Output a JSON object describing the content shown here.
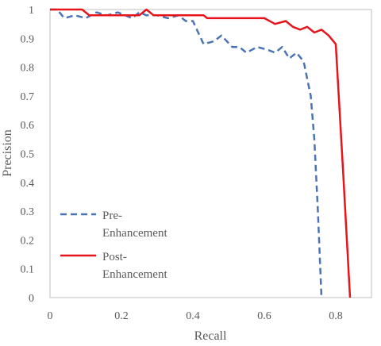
{
  "chart_data": {
    "type": "line",
    "title": "",
    "xlabel": "Recall",
    "ylabel": "Precision",
    "xlim": [
      0,
      0.9
    ],
    "ylim": [
      0,
      1
    ],
    "grid": false,
    "legend_position": "left",
    "x_ticks": [
      "0",
      "0.2",
      "0.4",
      "0.6",
      "0.8"
    ],
    "y_ticks": [
      "0",
      "0.1",
      "0.2",
      "0.3",
      "0.4",
      "0.5",
      "0.6",
      "0.7",
      "0.8",
      "0.9",
      "1"
    ],
    "series": [
      {
        "name": "Pre-Enhancement",
        "legend_lines": [
          "Pre-",
          "Enhancement"
        ],
        "color": "#4a74b5",
        "dash": "dashed",
        "points": [
          [
            0,
            1
          ],
          [
            0.02,
            1
          ],
          [
            0.04,
            0.97
          ],
          [
            0.07,
            0.98
          ],
          [
            0.1,
            0.97
          ],
          [
            0.13,
            0.99
          ],
          [
            0.16,
            0.98
          ],
          [
            0.19,
            0.99
          ],
          [
            0.23,
            0.97
          ],
          [
            0.25,
            0.99
          ],
          [
            0.27,
            0.98
          ],
          [
            0.3,
            0.98
          ],
          [
            0.33,
            0.97
          ],
          [
            0.36,
            0.98
          ],
          [
            0.38,
            0.96
          ],
          [
            0.4,
            0.96
          ],
          [
            0.43,
            0.88
          ],
          [
            0.46,
            0.89
          ],
          [
            0.48,
            0.91
          ],
          [
            0.51,
            0.87
          ],
          [
            0.53,
            0.87
          ],
          [
            0.55,
            0.85
          ],
          [
            0.58,
            0.87
          ],
          [
            0.61,
            0.86
          ],
          [
            0.63,
            0.85
          ],
          [
            0.65,
            0.87
          ],
          [
            0.67,
            0.83
          ],
          [
            0.69,
            0.85
          ],
          [
            0.71,
            0.82
          ],
          [
            0.73,
            0.7
          ],
          [
            0.74,
            0.55
          ],
          [
            0.75,
            0.3
          ],
          [
            0.76,
            0
          ]
        ]
      },
      {
        "name": "Post-Enhancement",
        "legend_lines": [
          "Post-",
          "Enhancement"
        ],
        "color": "#e8141c",
        "dash": "solid",
        "points": [
          [
            0,
            1
          ],
          [
            0.09,
            1
          ],
          [
            0.11,
            0.98
          ],
          [
            0.25,
            0.98
          ],
          [
            0.27,
            1
          ],
          [
            0.29,
            0.98
          ],
          [
            0.34,
            0.98
          ],
          [
            0.43,
            0.98
          ],
          [
            0.44,
            0.97
          ],
          [
            0.6,
            0.97
          ],
          [
            0.63,
            0.95
          ],
          [
            0.66,
            0.96
          ],
          [
            0.68,
            0.94
          ],
          [
            0.7,
            0.93
          ],
          [
            0.72,
            0.94
          ],
          [
            0.74,
            0.92
          ],
          [
            0.76,
            0.93
          ],
          [
            0.78,
            0.91
          ],
          [
            0.8,
            0.88
          ],
          [
            0.82,
            0.45
          ],
          [
            0.84,
            0
          ]
        ]
      }
    ]
  }
}
